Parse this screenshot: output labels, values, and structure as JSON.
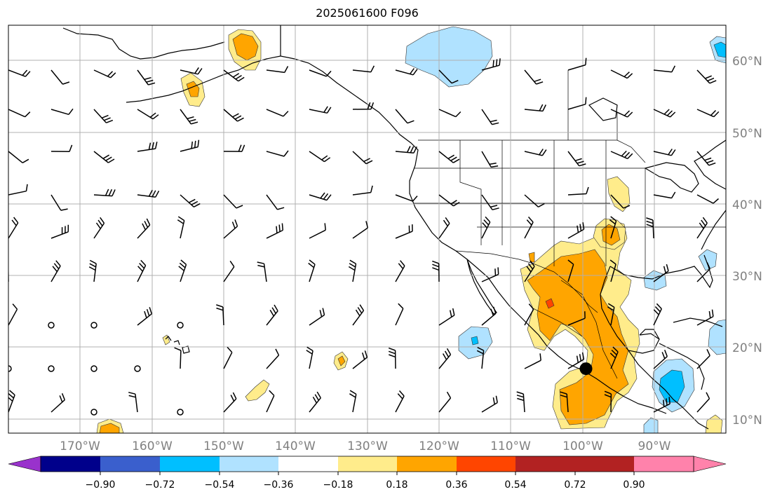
{
  "title": "2025061600 F096",
  "map": {
    "lon_range": [
      -180,
      -80
    ],
    "lat_range": [
      8,
      65
    ],
    "lat_labels": [
      {
        "lat": 60,
        "text": "60°N"
      },
      {
        "lat": 50,
        "text": "50°N"
      },
      {
        "lat": 40,
        "text": "40°N"
      },
      {
        "lat": 30,
        "text": "30°N"
      },
      {
        "lat": 20,
        "text": "20°N"
      },
      {
        "lat": 10,
        "text": "10°N"
      }
    ],
    "lon_labels": [
      {
        "lon": -170,
        "text": "170°W"
      },
      {
        "lon": -160,
        "text": "160°W"
      },
      {
        "lon": -150,
        "text": "150°W"
      },
      {
        "lon": -140,
        "text": "140°W"
      },
      {
        "lon": -130,
        "text": "130°W"
      },
      {
        "lon": -120,
        "text": "120°W"
      },
      {
        "lon": -110,
        "text": "110°W"
      },
      {
        "lon": -100,
        "text": "100°W"
      },
      {
        "lon": -90,
        "text": "90°W"
      }
    ],
    "grid": true,
    "marker": {
      "lon": -99.5,
      "lat": 17.0,
      "color": "#000000"
    }
  },
  "colorbar": {
    "colors": [
      "#9932cc",
      "#00008b",
      "#3a5fcd",
      "#00bfff",
      "#b0e2ff",
      "#ffffff",
      "#ffec8b",
      "#ffa500",
      "#ff4500",
      "#b22222",
      "#ff82ab"
    ],
    "ticks": [
      "−0.90",
      "−0.72",
      "−0.54",
      "−0.36",
      "−0.18",
      "0.18",
      "0.36",
      "0.54",
      "0.72",
      "0.90"
    ]
  }
}
